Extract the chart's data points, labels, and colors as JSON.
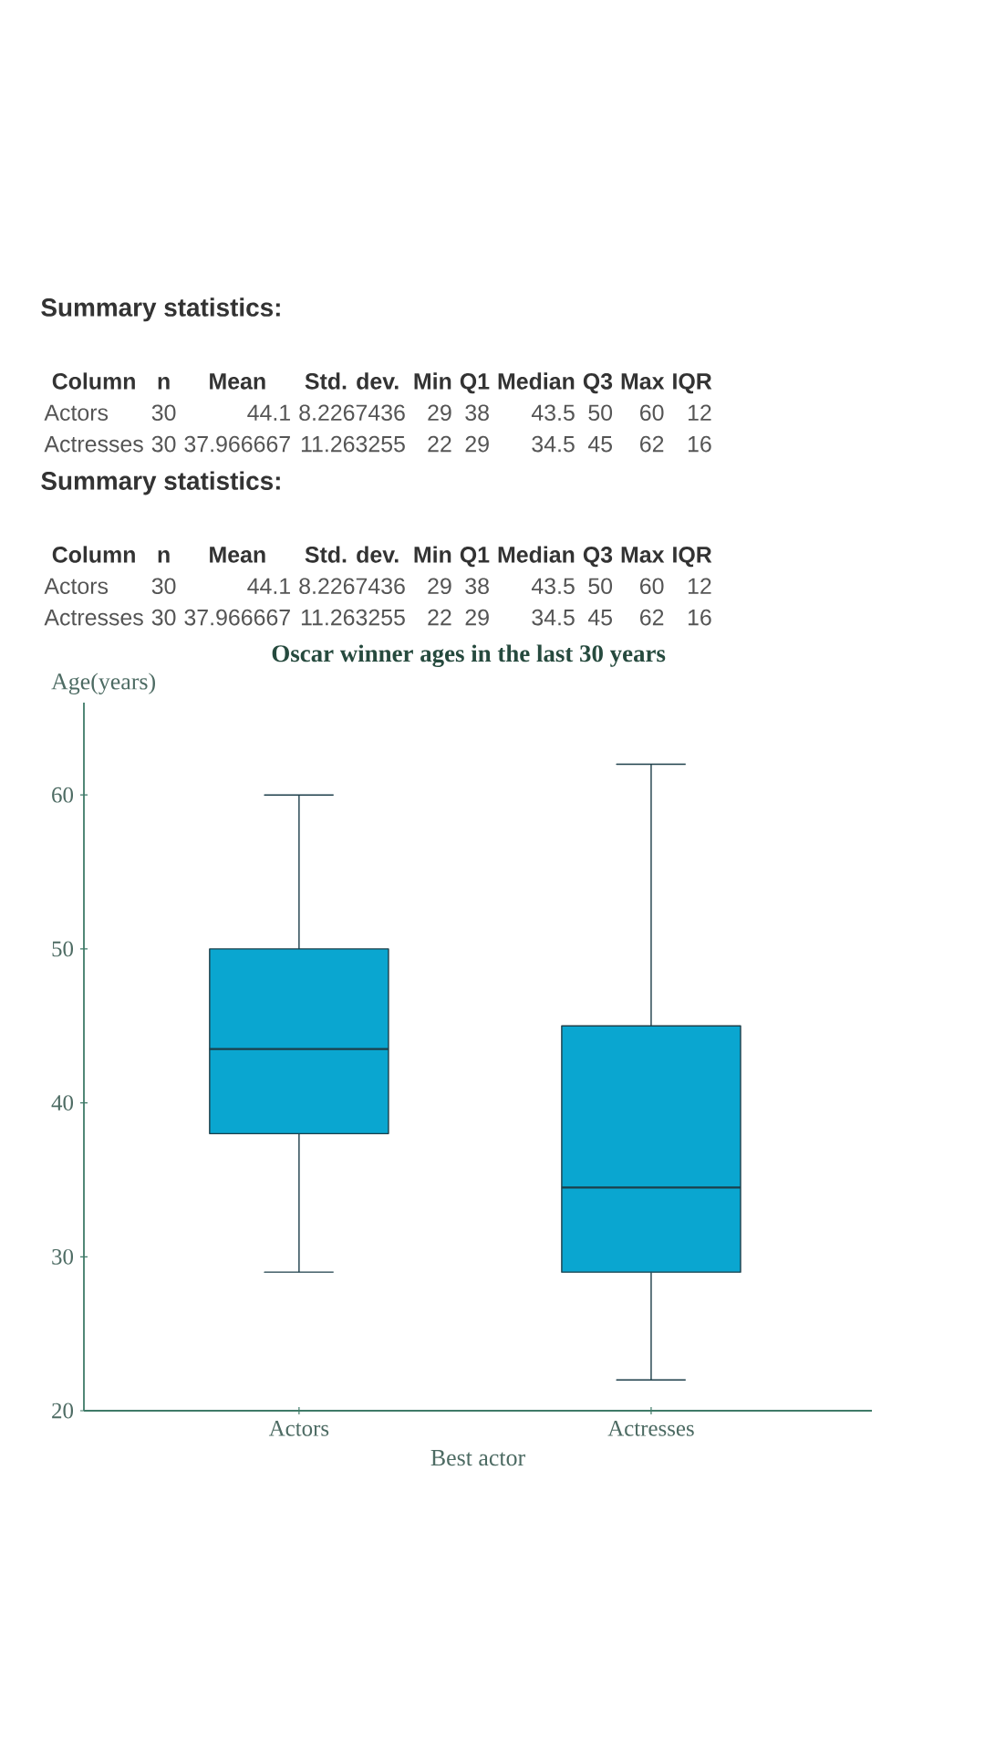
{
  "chart_data": [
    {
      "type": "other",
      "title": "Summary statistics:",
      "annotations": [
        "Column",
        "n",
        "Mean",
        "Std. dev.",
        "Min",
        "Q1",
        "Median",
        "Q3",
        "Max",
        "IQR",
        "Actors",
        "30",
        "44.1",
        "8.2267436",
        "29",
        "38",
        "43.5",
        "50",
        "60",
        "12",
        "Actresses",
        "30",
        "37.966667",
        "11.263255",
        "22",
        "29",
        "34.5",
        "45",
        "62",
        "16"
      ]
    },
    {
      "type": "other",
      "title": "Summary statistics:",
      "annotations": [
        "Column",
        "n",
        "Mean",
        "Std. dev.",
        "Min",
        "Q1",
        "Median",
        "Q3",
        "Max",
        "IQR",
        "Actors",
        "30",
        "44.1",
        "8.2267436",
        "29",
        "38",
        "43.5",
        "50",
        "60",
        "12",
        "Actresses",
        "30",
        "37.966667",
        "11.263255",
        "22",
        "29",
        "34.5",
        "45",
        "62",
        "16"
      ]
    },
    {
      "type": "box",
      "title": "Oscar winner ages in the last 30 years",
      "xlabel": "Best actor",
      "ylabel": "Age(years)",
      "categories": [
        "Actors",
        "Actresses"
      ],
      "series": [
        {
          "color": "#0aa6d0",
          "boxes": [
            {
              "low": 29,
              "q1": 38,
              "median": 43.5,
              "q3": 50,
              "high": 60
            },
            {
              "low": 22,
              "q1": 29,
              "median": 34.5,
              "q3": 45,
              "high": 62
            }
          ]
        }
      ],
      "ylim": [
        20,
        66
      ],
      "yticks": [
        20,
        30,
        40,
        50,
        60
      ]
    }
  ]
}
